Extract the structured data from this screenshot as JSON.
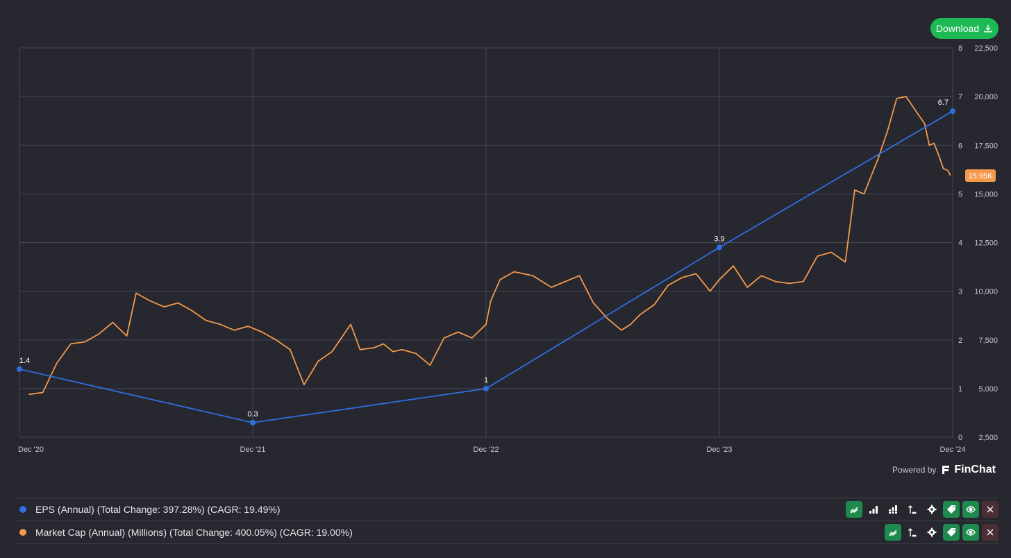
{
  "toolbar": {
    "download_label": "Download"
  },
  "footer": {
    "powered_by": "Powered by",
    "brand": "FinChat"
  },
  "legend": [
    {
      "label": "EPS (Annual) (Total Change: 397.28%) (CAGR: 19.49%)",
      "color": "#2f6fe0"
    },
    {
      "label": "Market Cap (Annual) (Millions) (Total Change: 400.05%) (CAGR: 19.00%)",
      "color": "#f39a4c"
    }
  ],
  "chart_data": {
    "type": "line",
    "x_tick_labels": [
      "Dec '20",
      "Dec '21",
      "Dec '22",
      "Dec '23",
      "Dec '24"
    ],
    "y_left_ticks": [
      "8",
      "7",
      "6",
      "5",
      "4",
      "3",
      "2",
      "1",
      "0"
    ],
    "y_right_ticks": [
      "22,500",
      "20,000",
      "17,500",
      "15,000",
      "12,500",
      "10,000",
      "7,500",
      "5,000",
      "2,500"
    ],
    "eps_ylim": [
      0,
      8
    ],
    "market_cap_ylim": [
      2500,
      22500
    ],
    "last_value_badge": "15.95K",
    "grid": true,
    "series": [
      {
        "name": "EPS (Annual)",
        "axis": "left",
        "color": "#2f6fe0",
        "x": [
          0,
          1,
          2,
          3,
          4
        ],
        "values": [
          1.4,
          0.3,
          1,
          3.9,
          6.7
        ],
        "labels": [
          "1.4",
          "0.3",
          "1",
          "3.9",
          "6.7"
        ]
      },
      {
        "name": "Market Cap (Annual) (Millions)",
        "axis": "right",
        "color": "#f39a4c",
        "x": [
          0.04,
          0.1,
          0.16,
          0.22,
          0.28,
          0.34,
          0.4,
          0.46,
          0.5,
          0.56,
          0.62,
          0.68,
          0.74,
          0.8,
          0.86,
          0.92,
          0.98,
          1.04,
          1.1,
          1.16,
          1.22,
          1.28,
          1.34,
          1.42,
          1.46,
          1.52,
          1.56,
          1.6,
          1.64,
          1.7,
          1.76,
          1.82,
          1.88,
          1.94,
          2.0,
          2.02,
          2.06,
          2.12,
          2.2,
          2.28,
          2.34,
          2.4,
          2.46,
          2.52,
          2.58,
          2.62,
          2.66,
          2.72,
          2.78,
          2.84,
          2.9,
          2.96,
          3.0,
          3.06,
          3.12,
          3.18,
          3.24,
          3.3,
          3.36,
          3.42,
          3.48,
          3.54,
          3.58,
          3.62,
          3.68,
          3.72,
          3.76,
          3.8,
          3.84,
          3.88,
          3.9,
          3.92,
          3.94,
          3.96,
          3.98,
          3.99
        ],
        "values": [
          4700,
          4800,
          6300,
          7300,
          7400,
          7800,
          8400,
          7700,
          9900,
          9500,
          9200,
          9400,
          9000,
          8500,
          8300,
          8000,
          8200,
          7900,
          7500,
          7000,
          5200,
          6400,
          6900,
          8300,
          7000,
          7100,
          7300,
          6900,
          7000,
          6800,
          6200,
          7600,
          7900,
          7600,
          8300,
          9500,
          10600,
          11000,
          10800,
          10200,
          10500,
          10800,
          9400,
          8600,
          8000,
          8300,
          8800,
          9300,
          10300,
          10700,
          10900,
          10000,
          10600,
          11300,
          10200,
          10800,
          10500,
          10400,
          10500,
          11800,
          12000,
          11500,
          15200,
          15000,
          16800,
          18200,
          19900,
          20000,
          19300,
          18600,
          17500,
          17600,
          17000,
          16300,
          16200,
          15950
        ]
      }
    ]
  }
}
